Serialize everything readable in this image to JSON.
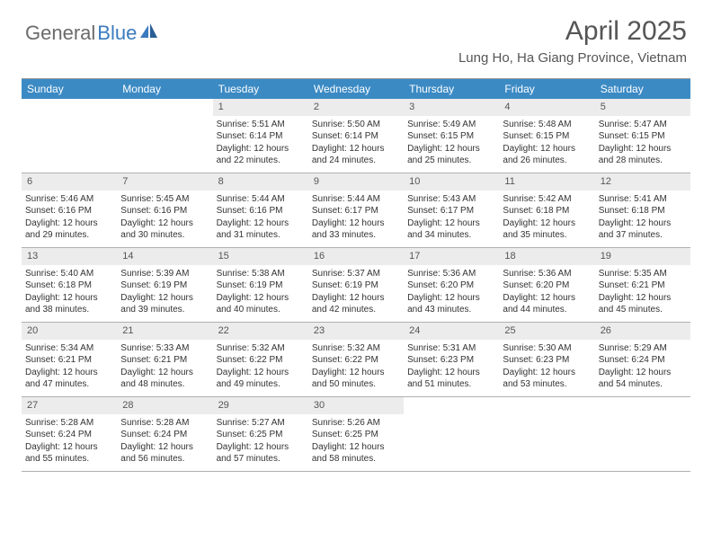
{
  "logo": {
    "text1": "General",
    "text2": "Blue"
  },
  "title": "April 2025",
  "location": "Lung Ho, Ha Giang Province, Vietnam",
  "colors": {
    "header_bar": "#3b8ac4",
    "daynum_bg": "#ececec",
    "text": "#333333",
    "title_text": "#555555",
    "logo_gray": "#6b6b6b",
    "logo_blue": "#3b7bbf",
    "rule": "#b0b0b0"
  },
  "dow": [
    "Sunday",
    "Monday",
    "Tuesday",
    "Wednesday",
    "Thursday",
    "Friday",
    "Saturday"
  ],
  "weeks": [
    [
      null,
      null,
      {
        "n": "1",
        "sr": "5:51 AM",
        "ss": "6:14 PM",
        "dl": "12 hours and 22 minutes."
      },
      {
        "n": "2",
        "sr": "5:50 AM",
        "ss": "6:14 PM",
        "dl": "12 hours and 24 minutes."
      },
      {
        "n": "3",
        "sr": "5:49 AM",
        "ss": "6:15 PM",
        "dl": "12 hours and 25 minutes."
      },
      {
        "n": "4",
        "sr": "5:48 AM",
        "ss": "6:15 PM",
        "dl": "12 hours and 26 minutes."
      },
      {
        "n": "5",
        "sr": "5:47 AM",
        "ss": "6:15 PM",
        "dl": "12 hours and 28 minutes."
      }
    ],
    [
      {
        "n": "6",
        "sr": "5:46 AM",
        "ss": "6:16 PM",
        "dl": "12 hours and 29 minutes."
      },
      {
        "n": "7",
        "sr": "5:45 AM",
        "ss": "6:16 PM",
        "dl": "12 hours and 30 minutes."
      },
      {
        "n": "8",
        "sr": "5:44 AM",
        "ss": "6:16 PM",
        "dl": "12 hours and 31 minutes."
      },
      {
        "n": "9",
        "sr": "5:44 AM",
        "ss": "6:17 PM",
        "dl": "12 hours and 33 minutes."
      },
      {
        "n": "10",
        "sr": "5:43 AM",
        "ss": "6:17 PM",
        "dl": "12 hours and 34 minutes."
      },
      {
        "n": "11",
        "sr": "5:42 AM",
        "ss": "6:18 PM",
        "dl": "12 hours and 35 minutes."
      },
      {
        "n": "12",
        "sr": "5:41 AM",
        "ss": "6:18 PM",
        "dl": "12 hours and 37 minutes."
      }
    ],
    [
      {
        "n": "13",
        "sr": "5:40 AM",
        "ss": "6:18 PM",
        "dl": "12 hours and 38 minutes."
      },
      {
        "n": "14",
        "sr": "5:39 AM",
        "ss": "6:19 PM",
        "dl": "12 hours and 39 minutes."
      },
      {
        "n": "15",
        "sr": "5:38 AM",
        "ss": "6:19 PM",
        "dl": "12 hours and 40 minutes."
      },
      {
        "n": "16",
        "sr": "5:37 AM",
        "ss": "6:19 PM",
        "dl": "12 hours and 42 minutes."
      },
      {
        "n": "17",
        "sr": "5:36 AM",
        "ss": "6:20 PM",
        "dl": "12 hours and 43 minutes."
      },
      {
        "n": "18",
        "sr": "5:36 AM",
        "ss": "6:20 PM",
        "dl": "12 hours and 44 minutes."
      },
      {
        "n": "19",
        "sr": "5:35 AM",
        "ss": "6:21 PM",
        "dl": "12 hours and 45 minutes."
      }
    ],
    [
      {
        "n": "20",
        "sr": "5:34 AM",
        "ss": "6:21 PM",
        "dl": "12 hours and 47 minutes."
      },
      {
        "n": "21",
        "sr": "5:33 AM",
        "ss": "6:21 PM",
        "dl": "12 hours and 48 minutes."
      },
      {
        "n": "22",
        "sr": "5:32 AM",
        "ss": "6:22 PM",
        "dl": "12 hours and 49 minutes."
      },
      {
        "n": "23",
        "sr": "5:32 AM",
        "ss": "6:22 PM",
        "dl": "12 hours and 50 minutes."
      },
      {
        "n": "24",
        "sr": "5:31 AM",
        "ss": "6:23 PM",
        "dl": "12 hours and 51 minutes."
      },
      {
        "n": "25",
        "sr": "5:30 AM",
        "ss": "6:23 PM",
        "dl": "12 hours and 53 minutes."
      },
      {
        "n": "26",
        "sr": "5:29 AM",
        "ss": "6:24 PM",
        "dl": "12 hours and 54 minutes."
      }
    ],
    [
      {
        "n": "27",
        "sr": "5:28 AM",
        "ss": "6:24 PM",
        "dl": "12 hours and 55 minutes."
      },
      {
        "n": "28",
        "sr": "5:28 AM",
        "ss": "6:24 PM",
        "dl": "12 hours and 56 minutes."
      },
      {
        "n": "29",
        "sr": "5:27 AM",
        "ss": "6:25 PM",
        "dl": "12 hours and 57 minutes."
      },
      {
        "n": "30",
        "sr": "5:26 AM",
        "ss": "6:25 PM",
        "dl": "12 hours and 58 minutes."
      },
      null,
      null,
      null
    ]
  ],
  "labels": {
    "sunrise": "Sunrise:",
    "sunset": "Sunset:",
    "daylight": "Daylight:"
  }
}
